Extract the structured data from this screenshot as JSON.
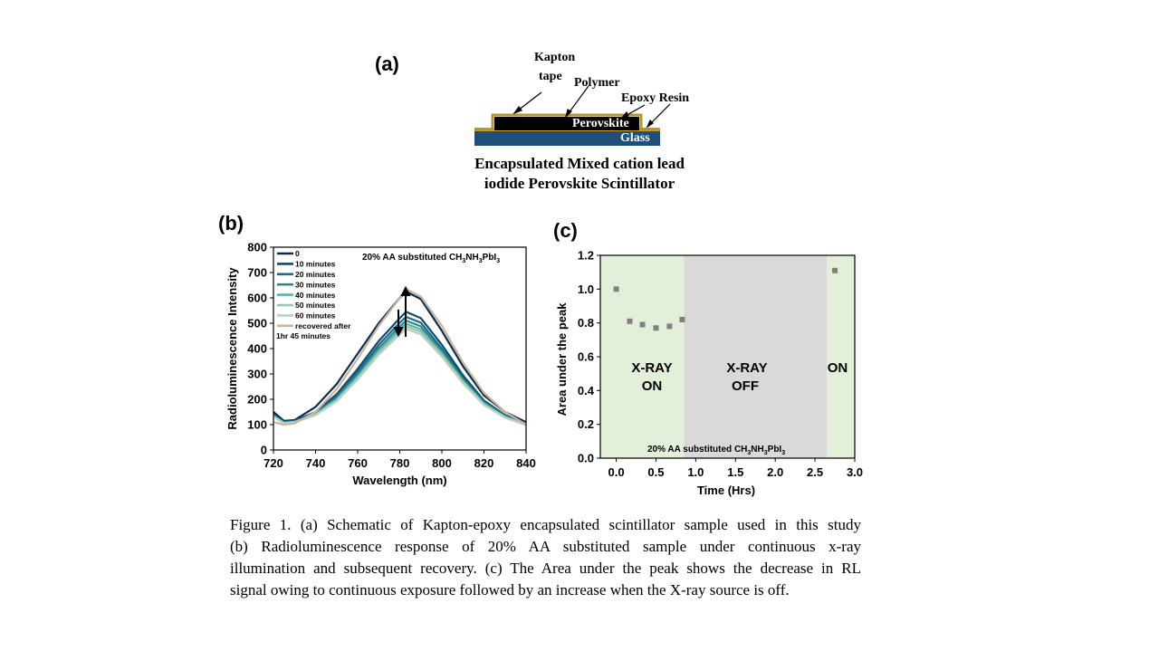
{
  "panel_a": {
    "label": "(a)",
    "kapton_label_line1": "Kapton",
    "kapton_label_line2": "tape",
    "polymer_label": "Polymer",
    "epoxy_label": "Epoxy Resin",
    "perovskite_label": "Perovskite",
    "glass_label": "Glass",
    "caption_line1": "Encapsulated Mixed cation lead",
    "caption_line2": "iodide Perovskite Scintillator",
    "colors": {
      "kapton": "#b8952a",
      "perovskite": "#000000",
      "glass": "#1f4e79",
      "epoxy": "#c9a227"
    }
  },
  "panel_b": {
    "label": "(b)",
    "annotation_main": "20% AA substituted CH",
    "annotation_sub1": "3",
    "annotation_mid": "NH",
    "annotation_sub2": "3",
    "annotation_end": "PbI",
    "annotation_sub3": "3",
    "legend_extra_line": "1hr 45 minutes"
  },
  "panel_c": {
    "label": "(c)",
    "on_label_line1": "X-RAY",
    "on_label_line2": "ON",
    "off_label_line1": "X-RAY",
    "off_label_line2": "OFF",
    "on2_label": "ON",
    "annotation_main": "20% AA substituted CH",
    "annotation_sub1": "3",
    "annotation_mid": "NH",
    "annotation_sub2": "3",
    "annotation_end": "PbI",
    "annotation_sub3": "3",
    "colors": {
      "on_region": "#e2efd9",
      "off_region": "#d9d9d9",
      "points": "#808080"
    }
  },
  "caption": {
    "line1": "Figure 1. (a) Schematic of Kapton-epoxy encapsulated scintillator sample used in this study",
    "line2": "(b) Radioluminescence response of 20% AA substituted sample under continuous x-ray",
    "line3": "illumination and subsequent recovery. (c) The Area under the peak shows the decrease in RL",
    "line4": "signal owing to continuous exposure followed by an increase when the X-ray source is off."
  },
  "chart_data": [
    {
      "id": "b",
      "type": "line",
      "xlabel": "Wavelength (nm)",
      "ylabel": "Radioluminescence Intensity",
      "xlim": [
        720,
        840
      ],
      "ylim": [
        0,
        800
      ],
      "xticks": [
        720,
        740,
        760,
        780,
        800,
        820,
        840
      ],
      "yticks": [
        0,
        100,
        200,
        300,
        400,
        500,
        600,
        700,
        800
      ],
      "legend_position": "top-left",
      "x": [
        720,
        725,
        730,
        740,
        750,
        760,
        770,
        780,
        783,
        790,
        800,
        810,
        820,
        830,
        840
      ],
      "series": [
        {
          "name": "0",
          "color": "#0b2d4f",
          "values": [
            150,
            115,
            118,
            170,
            260,
            380,
            500,
            600,
            625,
            595,
            470,
            330,
            215,
            150,
            110
          ]
        },
        {
          "name": "10 minutes",
          "color": "#124a6e",
          "values": [
            140,
            112,
            115,
            150,
            220,
            320,
            430,
            520,
            545,
            520,
            415,
            295,
            195,
            138,
            105
          ]
        },
        {
          "name": "20 minutes",
          "color": "#1a6a8a",
          "values": [
            138,
            110,
            113,
            146,
            212,
            308,
            415,
            502,
            525,
            502,
            400,
            285,
            190,
            135,
            103
          ]
        },
        {
          "name": "30 minutes",
          "color": "#2b8a8f",
          "values": [
            136,
            108,
            112,
            143,
            205,
            298,
            402,
            488,
            510,
            488,
            390,
            278,
            186,
            133,
            101
          ]
        },
        {
          "name": "40 minutes",
          "color": "#5fb0a8",
          "values": [
            134,
            107,
            111,
            141,
            200,
            290,
            392,
            476,
            498,
            476,
            382,
            273,
            183,
            131,
            100
          ]
        },
        {
          "name": "50 minutes",
          "color": "#95c6b4",
          "values": [
            132,
            106,
            110,
            139,
            196,
            284,
            384,
            466,
            488,
            466,
            375,
            268,
            180,
            129,
            99
          ]
        },
        {
          "name": "60 minutes",
          "color": "#b7d3c2",
          "values": [
            130,
            105,
            109,
            137,
            192,
            278,
            376,
            456,
            478,
            456,
            368,
            263,
            177,
            127,
            98
          ]
        },
        {
          "name": "recovered after",
          "color": "#c8b49a",
          "values": [
            110,
            100,
            105,
            150,
            240,
            360,
            490,
            600,
            635,
            605,
            490,
            345,
            225,
            150,
            100
          ]
        }
      ]
    },
    {
      "id": "c",
      "type": "scatter",
      "xlabel": "Time (Hrs)",
      "ylabel": "Area under the peak",
      "xlim": [
        -0.2,
        3.0
      ],
      "ylim": [
        0.0,
        1.2
      ],
      "xticks": [
        0.0,
        0.5,
        1.0,
        1.5,
        2.0,
        2.5,
        3.0
      ],
      "yticks": [
        0.0,
        0.2,
        0.4,
        0.6,
        0.8,
        1.0,
        1.2
      ],
      "regions": [
        {
          "from": -0.2,
          "to": 0.85,
          "state": "on"
        },
        {
          "from": 0.85,
          "to": 2.65,
          "state": "off"
        },
        {
          "from": 2.65,
          "to": 3.0,
          "state": "on"
        }
      ],
      "x": [
        0.0,
        0.17,
        0.33,
        0.5,
        0.67,
        0.83,
        2.75
      ],
      "y": [
        1.0,
        0.81,
        0.79,
        0.77,
        0.78,
        0.82,
        1.11
      ]
    }
  ]
}
